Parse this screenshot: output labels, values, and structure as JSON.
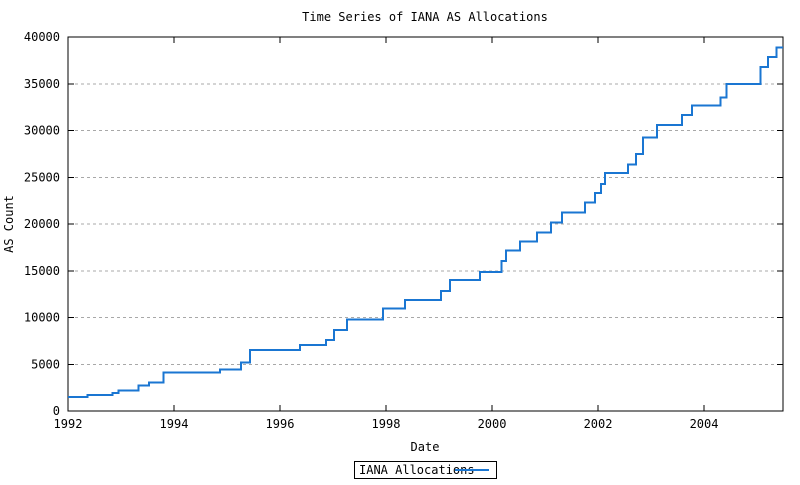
{
  "title": "Time Series of IANA AS Allocations",
  "axes": {
    "x_label": "Date",
    "y_label": "AS Count"
  },
  "legend": {
    "label": "IANA Allocations",
    "position": "bottom-center"
  },
  "colors": {
    "line": "#1a76d2",
    "grid": "#a8a8a8",
    "border": "#000000",
    "background": "#ffffff",
    "text": "#000000"
  },
  "chart_data": {
    "type": "line",
    "style": "steps-post",
    "title": "Time Series of IANA AS Allocations",
    "xlabel": "Date",
    "ylabel": "AS Count",
    "xlim": [
      1992,
      2005.49
    ],
    "ylim": [
      0,
      40000
    ],
    "x_ticks": [
      1992,
      1994,
      1996,
      1998,
      2000,
      2002,
      2004
    ],
    "y_ticks": [
      0,
      5000,
      10000,
      15000,
      20000,
      25000,
      30000,
      35000,
      40000
    ],
    "grid": "horizontal-dashed",
    "ticks": "inside-mirrored",
    "legend_position": "bottom-center-outside",
    "series": [
      {
        "name": "IANA Allocations",
        "color": "#1a76d2",
        "points": [
          [
            1992.0,
            1500
          ],
          [
            1992.37,
            1700
          ],
          [
            1992.84,
            1950
          ],
          [
            1992.95,
            2200
          ],
          [
            1993.33,
            2750
          ],
          [
            1993.53,
            3050
          ],
          [
            1993.8,
            4100
          ],
          [
            1994.87,
            4450
          ],
          [
            1995.26,
            5200
          ],
          [
            1995.43,
            6500
          ],
          [
            1996.38,
            7050
          ],
          [
            1996.87,
            7600
          ],
          [
            1997.02,
            8650
          ],
          [
            1997.26,
            9800
          ],
          [
            1997.94,
            10950
          ],
          [
            1998.36,
            11850
          ],
          [
            1999.04,
            12850
          ],
          [
            1999.21,
            14000
          ],
          [
            1999.77,
            14850
          ],
          [
            2000.18,
            16050
          ],
          [
            2000.26,
            17150
          ],
          [
            2000.53,
            18150
          ],
          [
            2000.85,
            19100
          ],
          [
            2001.11,
            20150
          ],
          [
            2001.32,
            21250
          ],
          [
            2001.75,
            22300
          ],
          [
            2001.94,
            23300
          ],
          [
            2002.06,
            24300
          ],
          [
            2002.13,
            25450
          ],
          [
            2002.57,
            26350
          ],
          [
            2002.72,
            27500
          ],
          [
            2002.85,
            29250
          ],
          [
            2003.11,
            30600
          ],
          [
            2003.58,
            31650
          ],
          [
            2003.77,
            32650
          ],
          [
            2004.31,
            33550
          ],
          [
            2004.42,
            34950
          ],
          [
            2005.07,
            36800
          ],
          [
            2005.21,
            37850
          ],
          [
            2005.37,
            38900
          ],
          [
            2005.49,
            38900
          ]
        ]
      }
    ]
  }
}
